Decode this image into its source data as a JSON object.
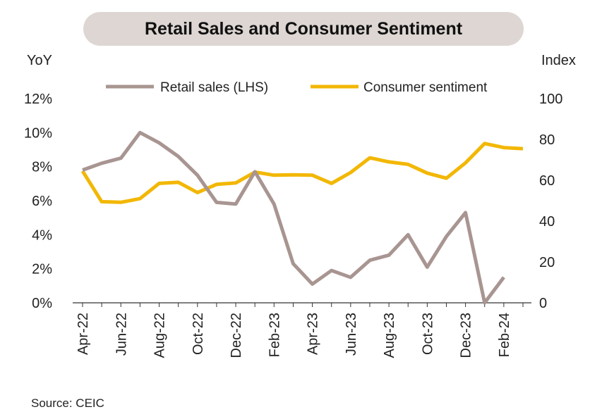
{
  "chart_data": {
    "type": "line",
    "title": "Retail Sales and Consumer Sentiment",
    "source": "Source:  CEIC",
    "left_axis": {
      "label": "YoY",
      "ticks": [
        "0%",
        "2%",
        "4%",
        "6%",
        "8%",
        "10%",
        "12%"
      ],
      "range": [
        0,
        12
      ]
    },
    "right_axis": {
      "label": "Index",
      "ticks": [
        "0",
        "20",
        "40",
        "60",
        "80",
        "100"
      ],
      "range": [
        0,
        100
      ]
    },
    "x": [
      "Apr-22",
      "May-22",
      "Jun-22",
      "Jul-22",
      "Aug-22",
      "Sep-22",
      "Oct-22",
      "Nov-22",
      "Dec-22",
      "Jan-23",
      "Feb-23",
      "Mar-23",
      "Apr-23",
      "May-23",
      "Jun-23",
      "Jul-23",
      "Aug-23",
      "Sep-23",
      "Oct-23",
      "Nov-23",
      "Dec-23",
      "Jan-24",
      "Feb-24",
      "Mar-24"
    ],
    "x_tick_labels": [
      "Apr-22",
      "Jun-22",
      "Aug-22",
      "Oct-22",
      "Dec-22",
      "Feb-23",
      "Apr-23",
      "Jun-23",
      "Aug-23",
      "Oct-23",
      "Dec-23",
      "Feb-24"
    ],
    "series": [
      {
        "name": "Retail sales (LHS)",
        "axis": "left",
        "color": "#a89591",
        "values": [
          7.8,
          8.2,
          8.5,
          10.0,
          9.4,
          8.6,
          7.5,
          5.9,
          5.8,
          7.7,
          5.8,
          2.3,
          1.1,
          1.9,
          1.5,
          2.5,
          2.8,
          4.0,
          2.1,
          3.9,
          5.3,
          0.0,
          1.5,
          null
        ]
      },
      {
        "name": "Consumer sentiment",
        "axis": "right",
        "color": "#f2b705",
        "values": [
          64.5,
          49.5,
          49.2,
          51.0,
          58.5,
          59.0,
          54.0,
          58.0,
          58.7,
          64.0,
          62.5,
          62.7,
          62.5,
          58.5,
          63.8,
          71.0,
          69.0,
          67.8,
          63.5,
          61.0,
          68.5,
          78.0,
          76.0,
          75.5
        ]
      }
    ]
  }
}
